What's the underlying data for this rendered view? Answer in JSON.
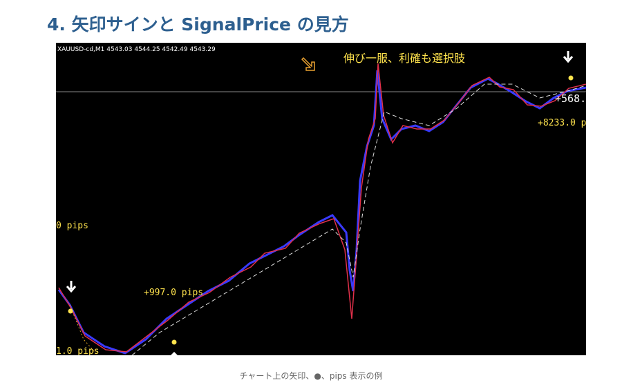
{
  "header": {
    "title": "4. 矢印サインと SignalPrice の見方"
  },
  "figure": {
    "symbol_info": "XAUUSD-cd,M1  4543.03 4544.25 4542.49 4543.29",
    "annotation": "伸び一服、利確も選択肢",
    "labels": [
      "+568.",
      "+8233.0 p",
      "0 pips",
      "+997.0 pips",
      "1.0 pips"
    ]
  },
  "caption": "チャート上の矢印、●、pips 表示の例"
}
